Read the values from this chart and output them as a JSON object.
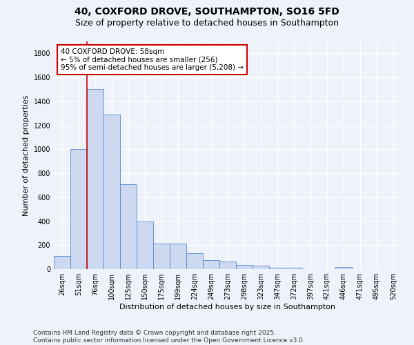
{
  "title": "40, COXFORD DROVE, SOUTHAMPTON, SO16 5FD",
  "subtitle": "Size of property relative to detached houses in Southampton",
  "xlabel": "Distribution of detached houses by size in Southampton",
  "ylabel": "Number of detached properties",
  "categories": [
    "26sqm",
    "51sqm",
    "76sqm",
    "100sqm",
    "125sqm",
    "150sqm",
    "175sqm",
    "199sqm",
    "224sqm",
    "249sqm",
    "273sqm",
    "298sqm",
    "323sqm",
    "347sqm",
    "372sqm",
    "397sqm",
    "421sqm",
    "446sqm",
    "471sqm",
    "495sqm",
    "520sqm"
  ],
  "values": [
    110,
    1000,
    1500,
    1290,
    710,
    400,
    215,
    215,
    135,
    75,
    65,
    35,
    30,
    10,
    10,
    0,
    0,
    15,
    0,
    0,
    0
  ],
  "bar_color": "#ccd9f0",
  "bar_edge_color": "#5588cc",
  "red_line_x": 1.5,
  "annotation_text": "40 COXFORD DROVE: 58sqm\n← 5% of detached houses are smaller (256)\n95% of semi-detached houses are larger (5,208) →",
  "annotation_box_color": "#ffffff",
  "annotation_box_edge": "#cc0000",
  "ylim": [
    0,
    1900
  ],
  "yticks": [
    0,
    200,
    400,
    600,
    800,
    1000,
    1200,
    1400,
    1600,
    1800
  ],
  "background_color": "#eef2fa",
  "grid_color": "#ffffff",
  "footer": "Contains HM Land Registry data © Crown copyright and database right 2025.\nContains public sector information licensed under the Open Government Licence v3.0.",
  "title_fontsize": 10,
  "subtitle_fontsize": 9,
  "axis_label_fontsize": 8,
  "tick_fontsize": 7,
  "annotation_fontsize": 7.5,
  "footer_fontsize": 6.5
}
